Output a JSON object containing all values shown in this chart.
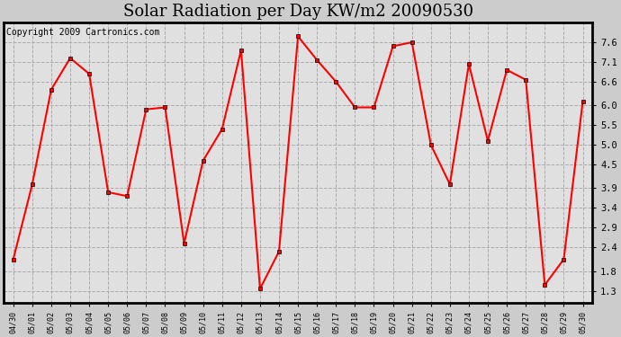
{
  "title": "Solar Radiation per Day KW/m2 20090530",
  "copyright": "Copyright 2009 Cartronics.com",
  "x_labels": [
    "04/30",
    "05/01",
    "05/02",
    "05/03",
    "05/04",
    "05/05",
    "05/06",
    "05/07",
    "05/08",
    "05/09",
    "05/10",
    "05/11",
    "05/12",
    "05/13",
    "05/14",
    "05/15",
    "05/16",
    "05/17",
    "05/18",
    "05/19",
    "05/20",
    "05/21",
    "05/22",
    "05/23",
    "05/24",
    "05/25",
    "05/26",
    "05/27",
    "05/28",
    "05/29",
    "05/30"
  ],
  "y_values": [
    2.1,
    4.0,
    6.4,
    7.2,
    6.8,
    3.8,
    3.7,
    5.9,
    5.95,
    2.5,
    4.6,
    5.4,
    7.4,
    1.35,
    2.3,
    7.75,
    7.15,
    6.6,
    5.95,
    5.95,
    7.5,
    7.6,
    5.0,
    4.0,
    7.05,
    5.1,
    6.9,
    6.65,
    1.45,
    2.1,
    6.1
  ],
  "line_color": "#ff0000",
  "marker": "s",
  "marker_size": 3,
  "marker_edge_color": "#000000",
  "ylim": [
    1.0,
    8.1
  ],
  "yticks": [
    1.3,
    1.8,
    2.4,
    2.9,
    3.4,
    3.9,
    4.5,
    5.0,
    5.5,
    6.0,
    6.6,
    7.1,
    7.6
  ],
  "bg_color": "#cccccc",
  "plot_bg_color": "#e0e0e0",
  "grid_color": "#aaaaaa",
  "title_fontsize": 13,
  "copyright_fontsize": 7,
  "tick_fontsize": 7.5,
  "xtick_fontsize": 6
}
